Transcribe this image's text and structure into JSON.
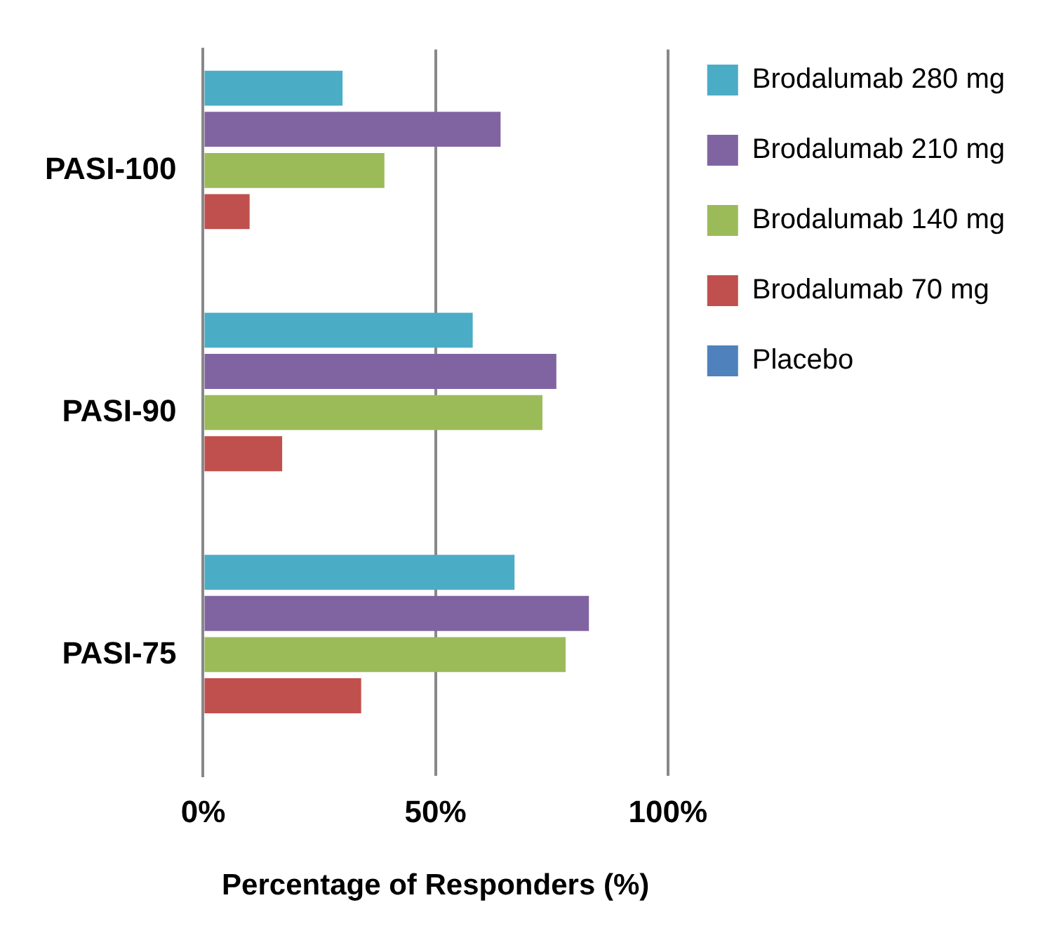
{
  "chart_data": {
    "type": "bar",
    "orientation": "horizontal",
    "xlabel": "Percentage of Responders (%)",
    "categories": [
      "PASI-100",
      "PASI-90",
      "PASI-75"
    ],
    "series": [
      {
        "name": "Brodalumab 280 mg",
        "color": "#4bacc6",
        "values": [
          30,
          58,
          67
        ]
      },
      {
        "name": "Brodalumab 210 mg",
        "color": "#8064a2",
        "values": [
          64,
          76,
          83
        ]
      },
      {
        "name": "Brodalumab 140 mg",
        "color": "#9bbb59",
        "values": [
          39,
          73,
          78
        ]
      },
      {
        "name": "Brodalumab 70 mg",
        "color": "#c0504d",
        "values": [
          10,
          17,
          34
        ]
      },
      {
        "name": "Placebo",
        "color": "#4f81bd",
        "values": [
          0,
          0,
          0
        ]
      }
    ],
    "xlim": [
      0,
      100
    ],
    "xticks": [
      {
        "value": 0,
        "label": "0%"
      },
      {
        "value": 50,
        "label": "50%"
      },
      {
        "value": 100,
        "label": "100%"
      }
    ],
    "grid": "x",
    "legend": "right"
  }
}
